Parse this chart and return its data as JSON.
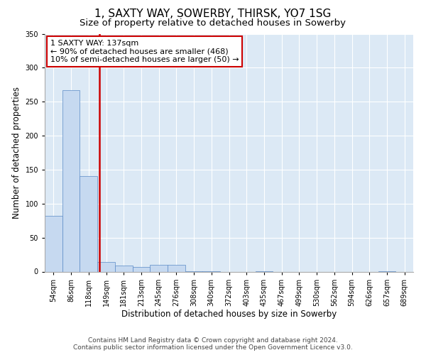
{
  "title": "1, SAXTY WAY, SOWERBY, THIRSK, YO7 1SG",
  "subtitle": "Size of property relative to detached houses in Sowerby",
  "xlabel": "Distribution of detached houses by size in Sowerby",
  "ylabel": "Number of detached properties",
  "bar_labels": [
    "54sqm",
    "86sqm",
    "118sqm",
    "149sqm",
    "181sqm",
    "213sqm",
    "245sqm",
    "276sqm",
    "308sqm",
    "340sqm",
    "372sqm",
    "403sqm",
    "435sqm",
    "467sqm",
    "499sqm",
    "530sqm",
    "562sqm",
    "594sqm",
    "626sqm",
    "657sqm",
    "689sqm"
  ],
  "bar_values": [
    82,
    267,
    141,
    14,
    9,
    7,
    10,
    10,
    1,
    1,
    0,
    0,
    1,
    0,
    0,
    0,
    0,
    0,
    0,
    1,
    0
  ],
  "bar_color": "#c6d9f0",
  "bar_edge_color": "#5a8ac6",
  "vline_color": "#cc0000",
  "annotation_text": "1 SAXTY WAY: 137sqm\n← 90% of detached houses are smaller (468)\n10% of semi-detached houses are larger (50) →",
  "annotation_box_color": "#ffffff",
  "annotation_box_edge_color": "#cc0000",
  "ylim": [
    0,
    350
  ],
  "yticks": [
    0,
    50,
    100,
    150,
    200,
    250,
    300,
    350
  ],
  "background_color": "#dce9f5",
  "grid_color": "#ffffff",
  "footer_line1": "Contains HM Land Registry data © Crown copyright and database right 2024.",
  "footer_line2": "Contains public sector information licensed under the Open Government Licence v3.0.",
  "title_fontsize": 11,
  "subtitle_fontsize": 9.5,
  "tick_fontsize": 7,
  "ylabel_fontsize": 8.5,
  "xlabel_fontsize": 8.5,
  "annotation_fontsize": 8,
  "footer_fontsize": 6.5
}
